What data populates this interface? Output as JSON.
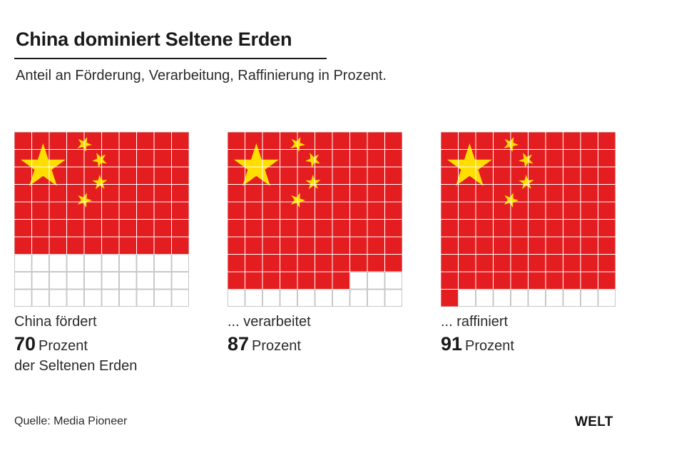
{
  "header": {
    "title": "China dominiert Seltene Erden",
    "subtitle": "Anteil an Förderung, Verarbeitung, Raffinierung in Prozent."
  },
  "colors": {
    "flag_red": "#e41e20",
    "star_yellow": "#ffde00",
    "grid_line": "#c8c8c8",
    "text": "#1a1a1a"
  },
  "chart_data": {
    "type": "waffle",
    "grid": "10x10",
    "unit": "Prozent",
    "items": [
      {
        "prefix": "China fördert",
        "value": 70,
        "unit": "Prozent",
        "suffix": "der Seltenen Erden"
      },
      {
        "prefix": "... verarbeitet",
        "value": 87,
        "unit": "Prozent",
        "suffix": ""
      },
      {
        "prefix": "... raffiniert",
        "value": 91,
        "unit": "Prozent",
        "suffix": ""
      }
    ]
  },
  "captions": [
    {
      "prefix": "China fördert",
      "value": "70",
      "unit": "Prozent",
      "suffix": "der Seltenen Erden"
    },
    {
      "prefix": "... verarbeitet",
      "value": "87",
      "unit": "Prozent",
      "suffix": ""
    },
    {
      "prefix": "... raffiniert",
      "value": "91",
      "unit": "Prozent",
      "suffix": ""
    }
  ],
  "footer": {
    "source": "Quelle: Media Pioneer",
    "logo": "WELT"
  }
}
